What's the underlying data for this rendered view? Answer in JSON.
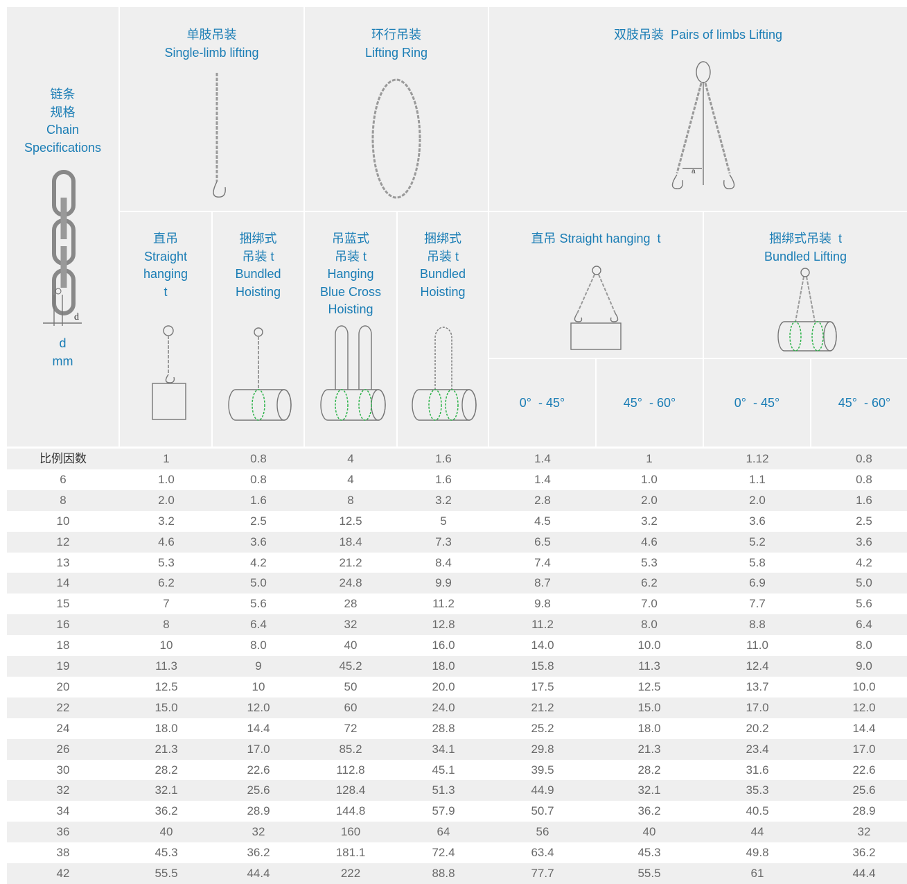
{
  "header": {
    "spec": [
      "链条",
      "规格",
      "Chain",
      "Specifications"
    ],
    "spec_unit": [
      "d",
      "mm"
    ],
    "d_label": "d",
    "single": [
      "单肢吊装",
      "Single-limb lifting"
    ],
    "ring": [
      "环行吊装",
      "Lifting Ring"
    ],
    "double": "双肢吊装  Pairs of limbs Lifting",
    "alpha": "a",
    "single_straight": [
      "直吊",
      "Straight",
      "hanging",
      "t"
    ],
    "single_bundled": [
      "捆绑式",
      "吊装 t",
      "Bundled",
      "Hoisting"
    ],
    "ring_hanging": [
      "吊蓝式",
      "吊装 t",
      "Hanging",
      "Blue Cross",
      "Hoisting"
    ],
    "ring_bundled": [
      "捆绑式",
      "吊装 t",
      "Bundled",
      "Hoisting"
    ],
    "double_straight": "直吊 Straight hanging  t",
    "double_bundled": [
      "捆绑式吊装  t",
      "Bundled Lifting"
    ],
    "angles": [
      "0°  - 45°",
      "45°  - 60°",
      "0°  - 45°",
      "45°  - 60°"
    ]
  },
  "table": {
    "rows": [
      [
        "比例因数",
        "1",
        "0.8",
        "4",
        "1.6",
        "1.4",
        "1",
        "1.12",
        "0.8"
      ],
      [
        "6",
        "1.0",
        "0.8",
        "4",
        "1.6",
        "1.4",
        "1.0",
        "1.1",
        "0.8"
      ],
      [
        "8",
        "2.0",
        "1.6",
        "8",
        "3.2",
        "2.8",
        "2.0",
        "2.0",
        "1.6"
      ],
      [
        "10",
        "3.2",
        "2.5",
        "12.5",
        "5",
        "4.5",
        "3.2",
        "3.6",
        "2.5"
      ],
      [
        "12",
        "4.6",
        "3.6",
        "18.4",
        "7.3",
        "6.5",
        "4.6",
        "5.2",
        "3.6"
      ],
      [
        "13",
        "5.3",
        "4.2",
        "21.2",
        "8.4",
        "7.4",
        "5.3",
        "5.8",
        "4.2"
      ],
      [
        "14",
        "6.2",
        "5.0",
        "24.8",
        "9.9",
        "8.7",
        "6.2",
        "6.9",
        "5.0"
      ],
      [
        "15",
        "7",
        "5.6",
        "28",
        "11.2",
        "9.8",
        "7.0",
        "7.7",
        "5.6"
      ],
      [
        "16",
        "8",
        "6.4",
        "32",
        "12.8",
        "11.2",
        "8.0",
        "8.8",
        "6.4"
      ],
      [
        "18",
        "10",
        "8.0",
        "40",
        "16.0",
        "14.0",
        "10.0",
        "11.0",
        "8.0"
      ],
      [
        "19",
        "11.3",
        "9",
        "45.2",
        "18.0",
        "15.8",
        "11.3",
        "12.4",
        "9.0"
      ],
      [
        "20",
        "12.5",
        "10",
        "50",
        "20.0",
        "17.5",
        "12.5",
        "13.7",
        "10.0"
      ],
      [
        "22",
        "15.0",
        "12.0",
        "60",
        "24.0",
        "21.2",
        "15.0",
        "17.0",
        "12.0"
      ],
      [
        "24",
        "18.0",
        "14.4",
        "72",
        "28.8",
        "25.2",
        "18.0",
        "20.2",
        "14.4"
      ],
      [
        "26",
        "21.3",
        "17.0",
        "85.2",
        "34.1",
        "29.8",
        "21.3",
        "23.4",
        "17.0"
      ],
      [
        "30",
        "28.2",
        "22.6",
        "112.8",
        "45.1",
        "39.5",
        "28.2",
        "31.6",
        "22.6"
      ],
      [
        "32",
        "32.1",
        "25.6",
        "128.4",
        "51.3",
        "44.9",
        "32.1",
        "35.3",
        "25.6"
      ],
      [
        "34",
        "36.2",
        "28.9",
        "144.8",
        "57.9",
        "50.7",
        "36.2",
        "40.5",
        "28.9"
      ],
      [
        "36",
        "40",
        "32",
        "160",
        "64",
        "56",
        "40",
        "44",
        "32"
      ],
      [
        "38",
        "45.3",
        "36.2",
        "181.1",
        "72.4",
        "63.4",
        "45.3",
        "49.8",
        "36.2"
      ],
      [
        "42",
        "55.5",
        "44.4",
        "222",
        "88.8",
        "77.7",
        "55.5",
        "61",
        "44.4"
      ]
    ]
  }
}
